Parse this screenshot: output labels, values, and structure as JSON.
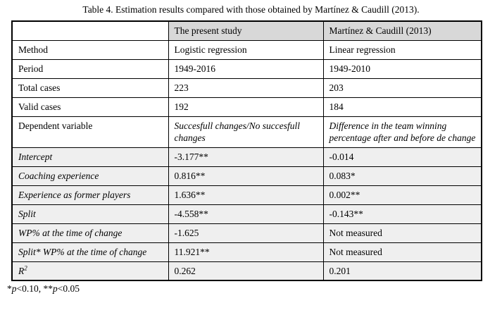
{
  "page": {
    "title": "Table 4. Estimation results compared with those obtained by Martínez & Caudill (2013)."
  },
  "table": {
    "header": {
      "col1": "",
      "col2": "The present study",
      "col3": "Martínez & Caudill (2013)"
    },
    "rows": [
      {
        "label": "Method",
        "present": "Logistic regression",
        "martinez": "Linear regression",
        "label_italic": false,
        "values_italic": false,
        "shaded": false
      },
      {
        "label": "Period",
        "present": "1949-2016",
        "martinez": "1949-2010",
        "label_italic": false,
        "values_italic": false,
        "shaded": false
      },
      {
        "label": "Total cases",
        "present": "223",
        "martinez": "203",
        "label_italic": false,
        "values_italic": false,
        "shaded": false
      },
      {
        "label": "Valid cases",
        "present": "192",
        "martinez": "184",
        "label_italic": false,
        "values_italic": false,
        "shaded": false
      },
      {
        "label": "Dependent variable",
        "present": "Succesfull changes/No succesfull changes",
        "martinez": "Difference in the team winning percentage after and before de change",
        "label_italic": false,
        "values_italic": true,
        "shaded": false
      },
      {
        "label": "Intercept",
        "present": "-3.177**",
        "martinez": "-0.014",
        "label_italic": true,
        "values_italic": false,
        "shaded": true
      },
      {
        "label": "Coaching experience",
        "present": "0.816**",
        "martinez": "0.083*",
        "label_italic": true,
        "values_italic": false,
        "shaded": true
      },
      {
        "label": "Experience as former players",
        "present": "1.636**",
        "martinez": "0.002**",
        "label_italic": true,
        "values_italic": false,
        "shaded": true
      },
      {
        "label": "Split",
        "present": "-4.558**",
        "martinez": "-0.143**",
        "label_italic": true,
        "values_italic": false,
        "shaded": true
      },
      {
        "label": "WP% at the time of change",
        "present": "-1.625",
        "martinez": "Not measured",
        "label_italic": true,
        "values_italic": false,
        "shaded": true
      },
      {
        "label": "Split* WP% at the time of change",
        "present": "11.921**",
        "martinez": "Not measured",
        "label_italic": true,
        "values_italic": false,
        "shaded": true
      },
      {
        "label": "R",
        "label_sup": "2",
        "present": "0.262",
        "martinez": "0.201",
        "label_italic": true,
        "values_italic": false,
        "shaded": true
      }
    ]
  },
  "footnote": {
    "s1": "*",
    "s2": "p",
    "s3": "<0.10, **",
    "s4": "p",
    "s5": "<0.05"
  },
  "colors": {
    "header_fill": "#d8d8d8",
    "shaded_row_fill": "#efefef",
    "border": "#000000",
    "background": "#ffffff"
  }
}
